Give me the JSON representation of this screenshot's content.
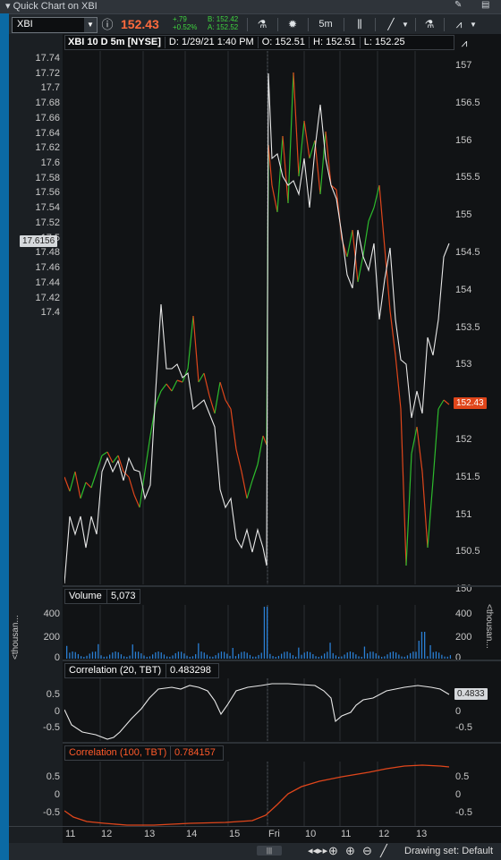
{
  "window": {
    "title": "Quick Chart on XBI"
  },
  "toolbar": {
    "symbol": "XBI",
    "last_price": "152.43",
    "change": "+.79",
    "change_pct": "+0.52%",
    "bid": "B: 152.42",
    "ask": "A: 152.52",
    "timeframe": "5m"
  },
  "chart": {
    "header": {
      "description": "XBI 10 D 5m [NYSE]",
      "date": "D: 1/29/21 1:40 PM",
      "open": "O: 152.51",
      "high": "H: 152.51",
      "low": "L: 152.25"
    },
    "left_axis_labels": [
      "17.74",
      "17.72",
      "17.7",
      "17.68",
      "17.66",
      "17.64",
      "17.62",
      "17.6",
      "17.58",
      "17.56",
      "17.54",
      "17.52",
      "17.5",
      "17.48",
      "17.46",
      "17.44",
      "17.42",
      "17.4"
    ],
    "right_axis_labels": [
      "157",
      "156.5",
      "156",
      "155.5",
      "155",
      "154.5",
      "154",
      "153.5",
      "153",
      "152.5",
      "152",
      "151.5",
      "151",
      "150.5",
      "150"
    ],
    "left_marker": "17.6156",
    "price_marker": "152.43",
    "colors": {
      "up": "#2dbb2d",
      "down": "#e0461b",
      "comparison": "#e8e8e8",
      "price_flag": "#e0461b"
    }
  },
  "volume": {
    "label": "Volume",
    "value": "5,073",
    "axis_labels": [
      "400",
      "200",
      "0"
    ],
    "side_label": "<thousan..."
  },
  "corr20": {
    "label": "Correlation (20, TBT)",
    "value": "0.483298",
    "axis_labels": [
      "0.5",
      "0",
      "-0.5"
    ],
    "marker": "0.4833"
  },
  "corr100": {
    "label": "Correlation (100, TBT)",
    "value": "0.784157",
    "axis_labels": [
      "0.5",
      "0",
      "-0.5"
    ]
  },
  "x_axis": {
    "labels": [
      "11",
      "12",
      "13",
      "14",
      "15",
      "Fri",
      "10",
      "11",
      "12",
      "13"
    ]
  },
  "bottom": {
    "drawing_set": "Drawing set: Default"
  }
}
